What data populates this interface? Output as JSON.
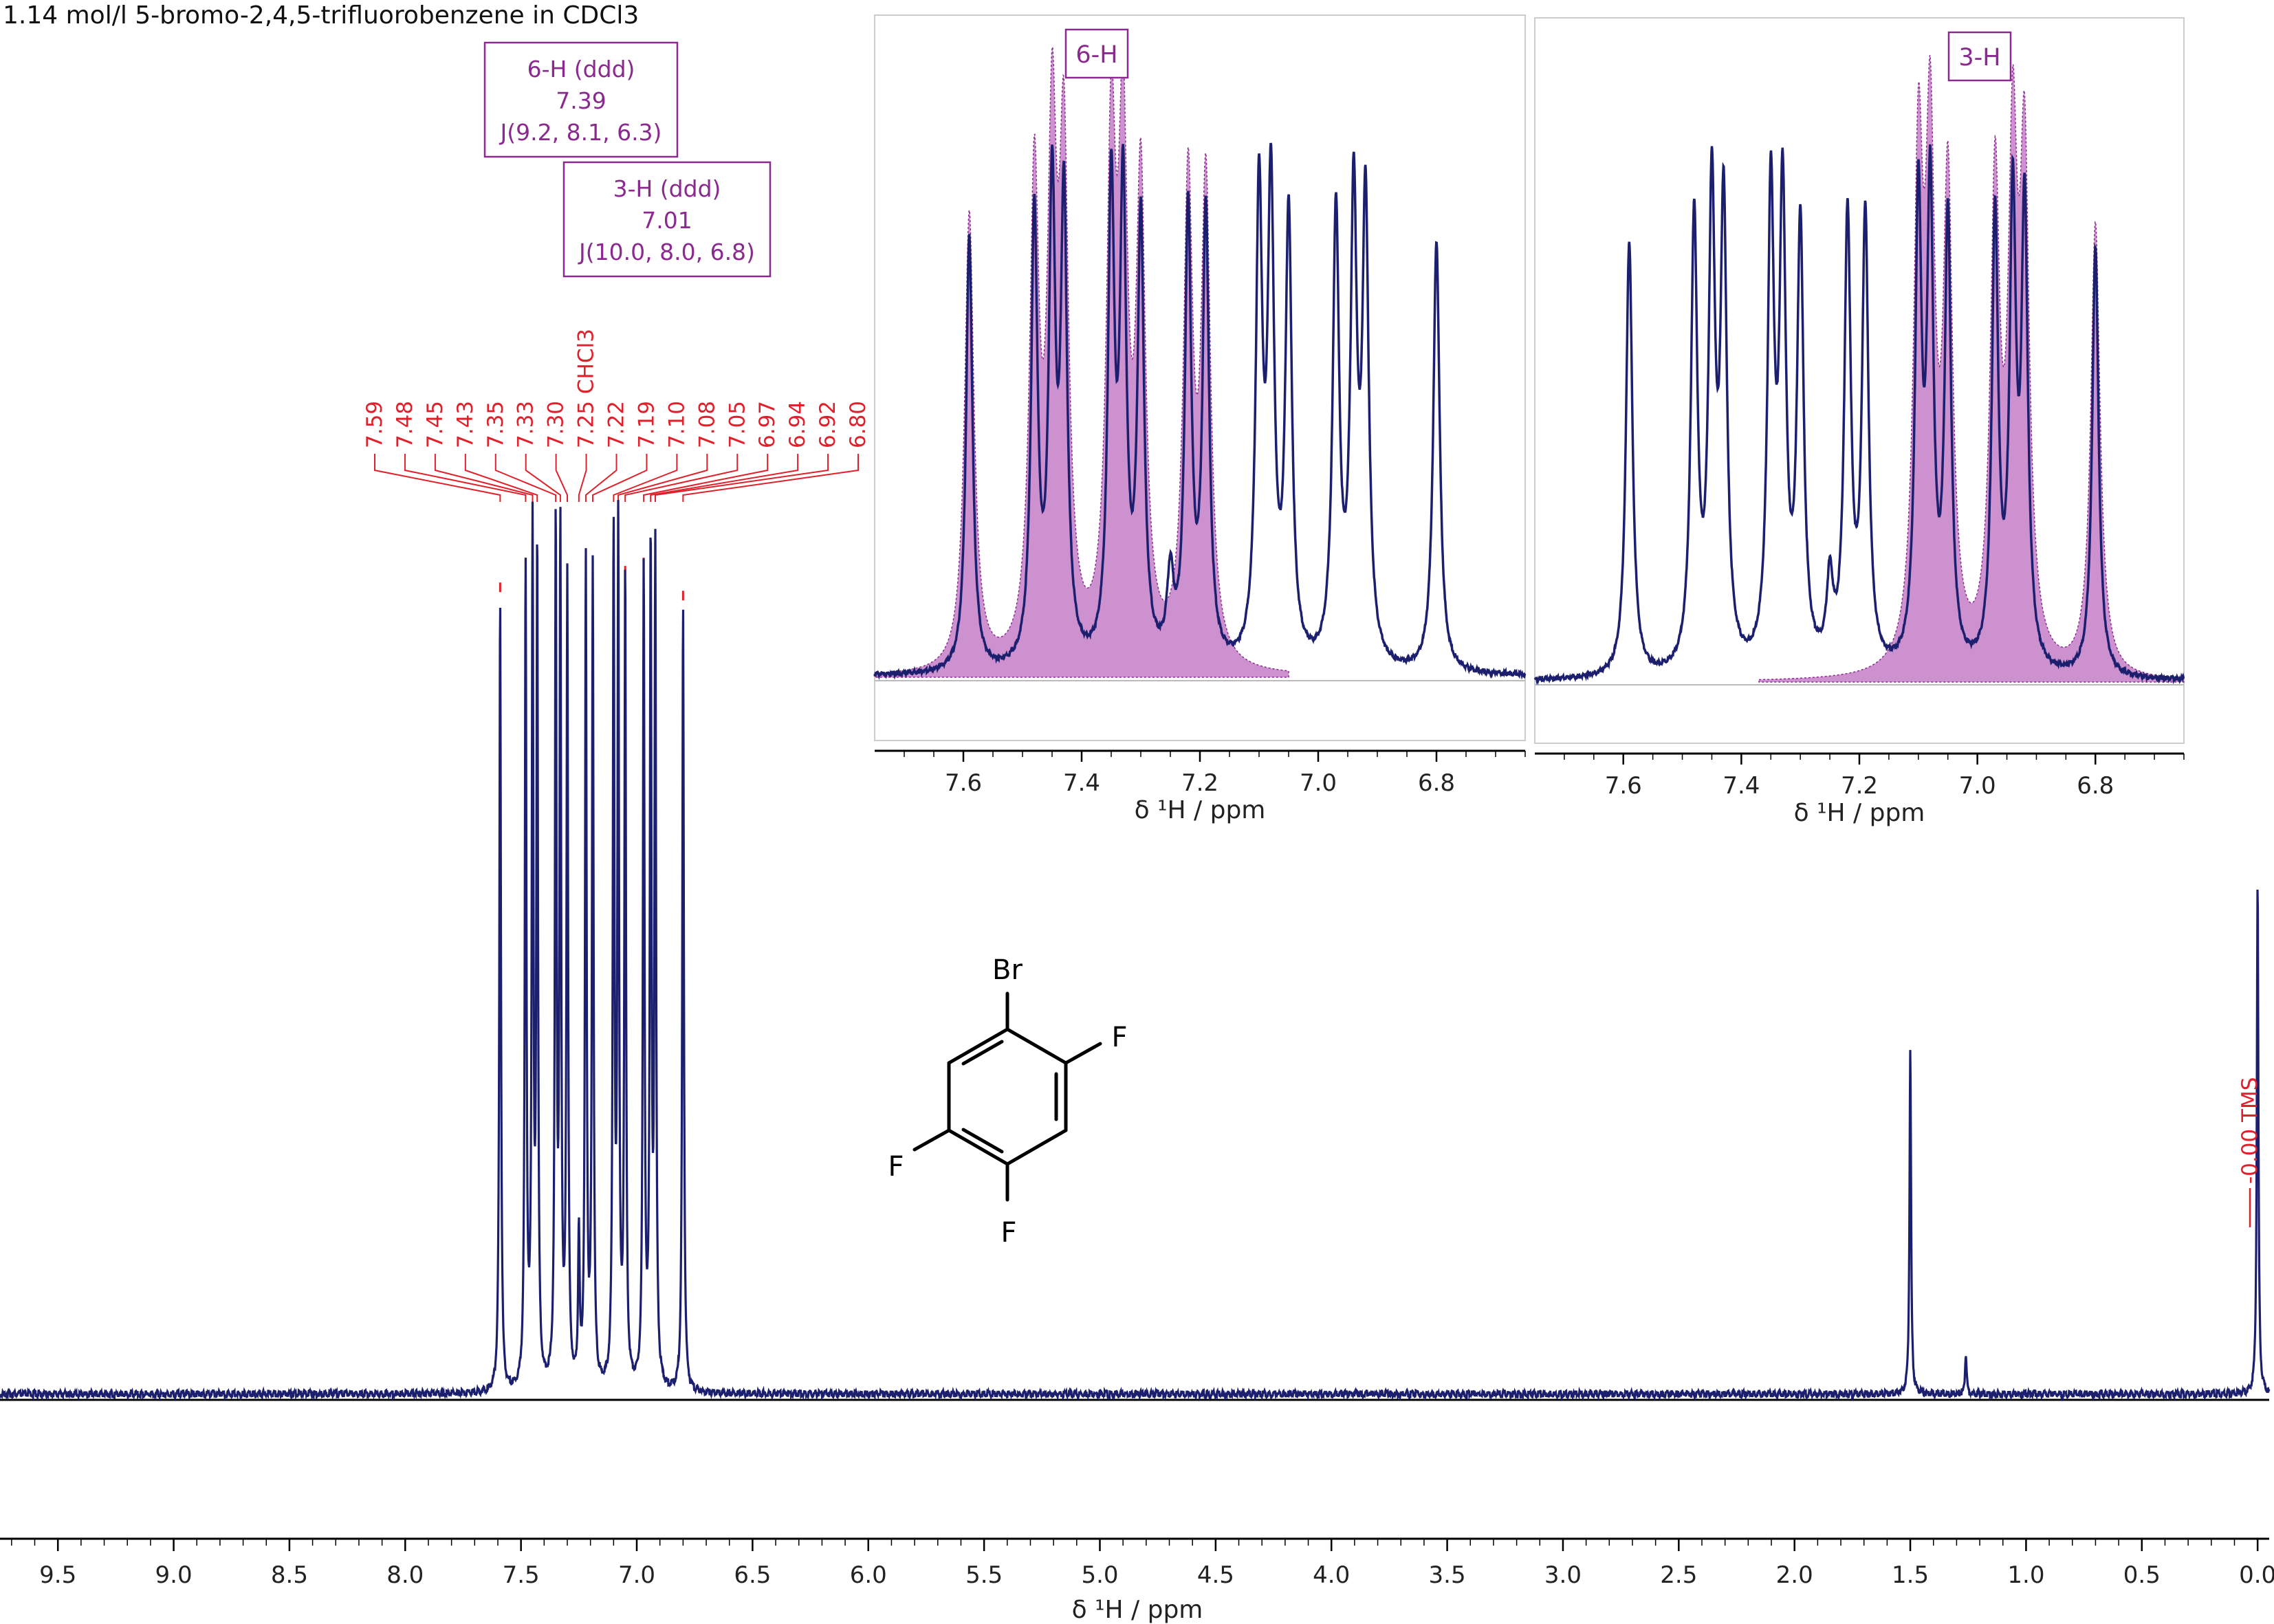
{
  "title": "1.14 mol/l 5-bromo-2,4,5-trifluorobenzene in CDCl3",
  "colors": {
    "spectrum": "#1b1f6e",
    "label_red": "#e0202a",
    "multiplet_fill": "#c37ec5",
    "multiplet_box": "#8a2a8f"
  },
  "multiplets": [
    {
      "name": "6-H (ddd)",
      "shift": "7.39",
      "j": "J(9.2, 8.1, 6.3)"
    },
    {
      "name": "3-H (ddd)",
      "shift": "7.01",
      "j": "J(10.0, 8.0, 6.8)"
    }
  ],
  "molecule": {
    "atoms": [
      "Br",
      "F",
      "F",
      "F"
    ]
  },
  "chart_data": [
    {
      "type": "line",
      "name": "main-spectrum",
      "xlabel": "δ ¹H / ppm",
      "xlim": [
        9.75,
        -0.05
      ],
      "x_ticks": [
        "9.5",
        "9.0",
        "8.5",
        "8.0",
        "7.5",
        "7.0",
        "6.5",
        "6.0",
        "5.5",
        "5.0",
        "4.5",
        "4.0",
        "3.5",
        "3.0",
        "2.5",
        "2.0",
        "1.5",
        "1.0",
        "0.5",
        "0.0"
      ],
      "x_tick_values": [
        9.5,
        9.0,
        8.5,
        8.0,
        7.5,
        7.0,
        6.5,
        6.0,
        5.5,
        5.0,
        4.5,
        4.0,
        3.5,
        3.0,
        2.5,
        2.0,
        1.5,
        1.0,
        0.5,
        0.0
      ],
      "peaks": [
        {
          "ppm": 7.59,
          "height": 0.96
        },
        {
          "ppm": 7.48,
          "height": 0.99
        },
        {
          "ppm": 7.45,
          "height": 1.02
        },
        {
          "ppm": 7.43,
          "height": 1.0
        },
        {
          "ppm": 7.35,
          "height": 1.03
        },
        {
          "ppm": 7.33,
          "height": 1.01
        },
        {
          "ppm": 7.3,
          "height": 0.97
        },
        {
          "ppm": 7.25,
          "height": 0.18
        },
        {
          "ppm": 7.22,
          "height": 0.99
        },
        {
          "ppm": 7.19,
          "height": 0.99
        },
        {
          "ppm": 7.1,
          "height": 1.02
        },
        {
          "ppm": 7.08,
          "height": 1.02
        },
        {
          "ppm": 7.05,
          "height": 0.98
        },
        {
          "ppm": 6.97,
          "height": 0.99
        },
        {
          "ppm": 6.94,
          "height": 1.0
        },
        {
          "ppm": 6.92,
          "height": 1.0
        },
        {
          "ppm": 6.8,
          "height": 0.95
        },
        {
          "ppm": 1.5,
          "height": 0.42
        },
        {
          "ppm": 1.26,
          "height": 0.05
        },
        {
          "ppm": 0.0,
          "height": 0.62
        }
      ],
      "peak_labels": [
        "7.59",
        "7.48",
        "7.45",
        "7.43",
        "7.35",
        "7.33",
        "7.30",
        "7.25 CHCl3",
        "7.22",
        "7.19",
        "7.10",
        "7.08",
        "7.05",
        "6.97",
        "6.94",
        "6.92",
        "6.80"
      ],
      "tms_label": "-0.00 TMS"
    },
    {
      "type": "line",
      "name": "inset-6H",
      "label": "6-H",
      "xlabel": "δ ¹H / ppm",
      "xlim": [
        7.75,
        6.65
      ],
      "x_ticks": [
        "7.6",
        "7.4",
        "7.2",
        "7.0",
        "6.8"
      ],
      "x_tick_values": [
        7.6,
        7.4,
        7.2,
        7.0,
        6.8
      ],
      "fill_range": [
        7.05,
        7.75
      ]
    },
    {
      "type": "line",
      "name": "inset-3H",
      "label": "3-H",
      "xlabel": "δ ¹H / ppm",
      "xlim": [
        7.75,
        6.65
      ],
      "x_ticks": [
        "7.6",
        "7.4",
        "7.2",
        "7.0",
        "6.8"
      ],
      "x_tick_values": [
        7.6,
        7.4,
        7.2,
        7.0,
        6.8
      ],
      "fill_range": [
        6.65,
        7.37
      ]
    }
  ]
}
